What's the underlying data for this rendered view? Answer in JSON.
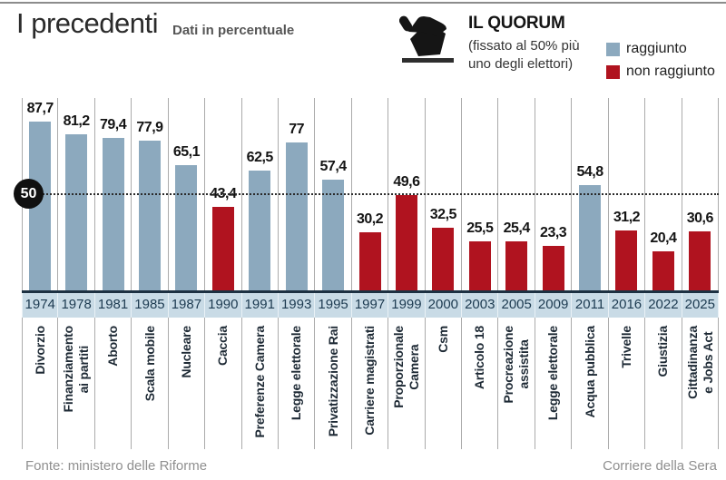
{
  "page": {
    "title": "I precedenti",
    "subtitle": "Dati in percentuale"
  },
  "quorum": {
    "heading": "IL QUORUM",
    "note": "(fissato al 50% più\nuno degli elettori)",
    "badge_label": "50",
    "legend": [
      {
        "label": "raggiunto",
        "status": "reached",
        "color": "#8ca9be"
      },
      {
        "label": "non raggiunto",
        "status": "not_reached",
        "color": "#b0131f"
      }
    ]
  },
  "chart_data": {
    "type": "bar",
    "title": "I precedenti",
    "subtitle": "Dati in percentuale",
    "unit": "percent",
    "ylim": [
      0,
      100
    ],
    "grid": "vertical-only",
    "quorum_threshold": 50,
    "legend_position": "top-right",
    "categories": [
      "1974",
      "1978",
      "1981",
      "1985",
      "1987",
      "1990",
      "1991",
      "1993",
      "1995",
      "1997",
      "1999",
      "2000",
      "2003",
      "2005",
      "2009",
      "2011",
      "2016",
      "2022",
      "2025"
    ],
    "topics": [
      "Divorzio",
      "Finanziamento\nai partiti",
      "Aborto",
      "Scala mobile",
      "Nucleare",
      "Caccia",
      "Preferenze Camera",
      "Legge elettorale",
      "Privatizzazione Rai",
      "Carriere magistrati",
      "Proporzionale\nCamera",
      "Csm",
      "Articolo 18",
      "Procreazione\nassistita",
      "Legge elettorale",
      "Acqua pubblica",
      "Trivelle",
      "Giustizia",
      "Cittadinanza\ne Jobs Act"
    ],
    "values": [
      87.7,
      81.2,
      79.4,
      77.9,
      65.1,
      43.4,
      62.5,
      77,
      57.4,
      30.2,
      49.6,
      32.5,
      25.5,
      25.4,
      23.3,
      54.8,
      31.2,
      20.4,
      30.6
    ],
    "value_labels": [
      "87,7",
      "81,2",
      "79,4",
      "77,9",
      "65,1",
      "43,4",
      "62,5",
      "77",
      "57,4",
      "30,2",
      "49,6",
      "32,5",
      "25,5",
      "25,4",
      "23,3",
      "54,8",
      "31,2",
      "20,4",
      "30,6"
    ],
    "quorum_reached": [
      true,
      true,
      true,
      true,
      true,
      false,
      true,
      true,
      true,
      false,
      false,
      false,
      false,
      false,
      false,
      true,
      false,
      false,
      false
    ],
    "colors": {
      "reached": "#8ca9be",
      "not_reached": "#b0131f",
      "year_band": "#c9dbe6",
      "baseline": "#1d3142"
    }
  },
  "footer": {
    "source": "Fonte: ministero delle Riforme",
    "credit": "Corriere della Sera"
  }
}
